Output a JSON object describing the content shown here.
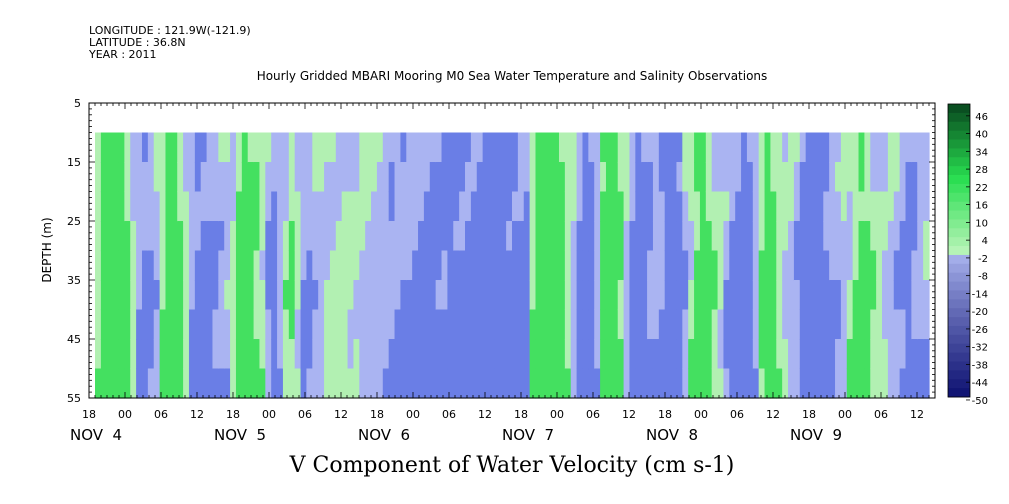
{
  "header": {
    "longitude": "LONGITUDE : 121.9W(-121.9)",
    "latitude": "LATITUDE : 36.8N",
    "year": "YEAR : 2011"
  },
  "chart_data": {
    "type": "heatmap",
    "title": "Hourly Gridded MBARI Mooring M0 Sea Water Temperature and Salinity Observations",
    "xlabel": "V Component of Water Velocity (cm s-1)",
    "ylabel": "DEPTH (m)",
    "x_unit": "hours from 03 NOV 18:00",
    "xlim": [
      0,
      141
    ],
    "ylim": [
      55,
      5
    ],
    "y_ticks": [
      5,
      15,
      25,
      35,
      45,
      55
    ],
    "x_hour_ticks": [
      "18",
      "00",
      "06",
      "12",
      "18",
      "00",
      "06",
      "12",
      "18",
      "00",
      "06",
      "12",
      "18",
      "00",
      "06",
      "12",
      "18",
      "00",
      "06",
      "12",
      "18",
      "00",
      "06",
      "12"
    ],
    "x_day_labels": [
      "NOV  4",
      "NOV  5",
      "NOV  6",
      "NOV  7",
      "NOV  8",
      "NOV  9"
    ],
    "data_extent": {
      "time_start_hour": 1,
      "time_end_hour": 140,
      "depth_top": 10,
      "depth_bottom": 55
    },
    "colorbar": {
      "labels": [
        "46",
        "40",
        "34",
        "28",
        "22",
        "16",
        "10",
        "4",
        "-2",
        "-8",
        "-14",
        "-20",
        "-26",
        "-32",
        "-38",
        "-44",
        "-50"
      ],
      "min": -50,
      "max": 50,
      "step": 3
    },
    "colors": {
      "strong_neg": "#0a1a7a",
      "neg": "#6a7ee6",
      "weak_neg": "#aab4f2",
      "weak_pos": "#b2f0b2",
      "pos": "#44e060",
      "strong_pos": "#0a5a1a"
    },
    "column_values": [
      4,
      10,
      16,
      19,
      14,
      8,
      2,
      -4,
      -8,
      -6,
      -3,
      4,
      10,
      14,
      8,
      2,
      -5,
      -9,
      -10,
      -8,
      -6,
      -4,
      -2,
      2,
      8,
      12,
      10,
      6,
      2,
      -5,
      -8,
      -4,
      3,
      6,
      0,
      -6,
      -5,
      -3,
      -2,
      0,
      2,
      2,
      2,
      1,
      0,
      -1,
      -2,
      -2,
      -3,
      -4,
      -5,
      -5,
      -6,
      -6,
      -7,
      -7,
      -8,
      -8,
      -8,
      -8,
      -9,
      -9,
      -9,
      -10,
      -10,
      -10,
      -11,
      -10,
      -10,
      -9,
      -9,
      -10,
      -8,
      -10,
      4,
      12,
      17,
      19,
      16,
      10,
      4,
      -2,
      -8,
      -14,
      -10,
      -4,
      10,
      17,
      12,
      6,
      -2,
      -8,
      -14,
      -10,
      -6,
      -4,
      -6,
      -10,
      -14,
      -10,
      -4,
      2,
      8,
      12,
      8,
      4,
      0,
      -4,
      -8,
      -10,
      -12,
      -8,
      -4,
      6,
      14,
      8,
      4,
      0,
      -2,
      -4,
      -8,
      -10,
      -12,
      -10,
      -8,
      -6,
      -4,
      -2,
      2,
      6,
      10,
      8,
      4,
      2,
      0,
      -2,
      -4,
      -6,
      -8,
      -6,
      -4,
      -2
    ],
    "depth_profile_rows": [
      10,
      15,
      20,
      25,
      30,
      35,
      40,
      45,
      50,
      55
    ]
  }
}
